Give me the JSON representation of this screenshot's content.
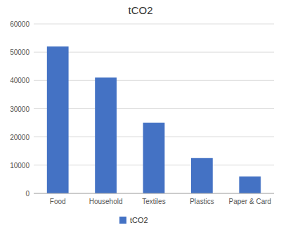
{
  "chart_data": {
    "type": "bar",
    "title": "tCO2",
    "categories": [
      "Food",
      "Household",
      "Textiles",
      "Plastics",
      "Paper & Card"
    ],
    "series": [
      {
        "name": "tCO2",
        "color": "#4472C4",
        "values": [
          52000,
          41000,
          25000,
          12500,
          6000
        ]
      }
    ],
    "ylim": [
      0,
      60000
    ],
    "yticks": [
      0,
      10000,
      20000,
      30000,
      40000,
      50000,
      60000
    ],
    "grid": true,
    "legend": "bottom"
  }
}
